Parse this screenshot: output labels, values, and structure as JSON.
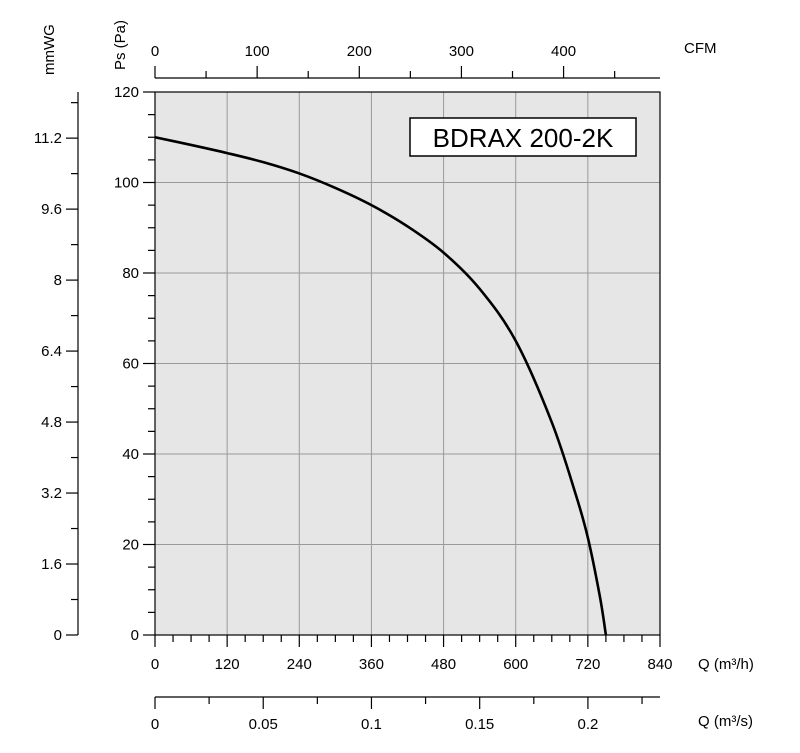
{
  "chart_data": {
    "type": "line",
    "title": "BDRAX  200-2K",
    "x_axis_bottom": {
      "label": "Q (m³/h)",
      "range": [
        0,
        840
      ],
      "ticks": [
        "0",
        "120",
        "240",
        "360",
        "480",
        "600",
        "720",
        "840"
      ]
    },
    "x_axis_m3s": {
      "label": "Q (m³/s)",
      "range": [
        0,
        0.2333
      ],
      "ticks": [
        "0",
        "0.05",
        "0.1",
        "0.15",
        "0.2"
      ]
    },
    "x_axis_top": {
      "label": "CFM",
      "range": [
        0,
        494.4
      ],
      "ticks": [
        "0",
        "100",
        "200",
        "300",
        "400"
      ]
    },
    "y_axis_left_inner": {
      "label": "Ps (Pa)",
      "range": [
        0,
        120
      ],
      "ticks": [
        "0",
        "20",
        "40",
        "60",
        "80",
        "100",
        "120"
      ]
    },
    "y_axis_left_outer": {
      "label": "mmWG",
      "range": [
        0,
        12.24
      ],
      "ticks": [
        "0",
        "1.6",
        "3.2",
        "4.8",
        "6.4",
        "8",
        "9.6",
        "11.2"
      ]
    },
    "grid": true,
    "colors": {
      "plot_background": "#e6e6e6",
      "grid": "#9a9a9a",
      "curve": "#000000"
    },
    "series": [
      {
        "x": [
          0,
          60,
          120,
          180,
          240,
          300,
          360,
          420,
          480,
          540,
          600,
          660,
          700,
          720,
          740,
          750
        ],
        "y": [
          110,
          108.3,
          106.5,
          104.5,
          102,
          98.8,
          95,
          90.3,
          84.5,
          76.5,
          65,
          47,
          31,
          21.5,
          8.5,
          0
        ]
      }
    ]
  }
}
